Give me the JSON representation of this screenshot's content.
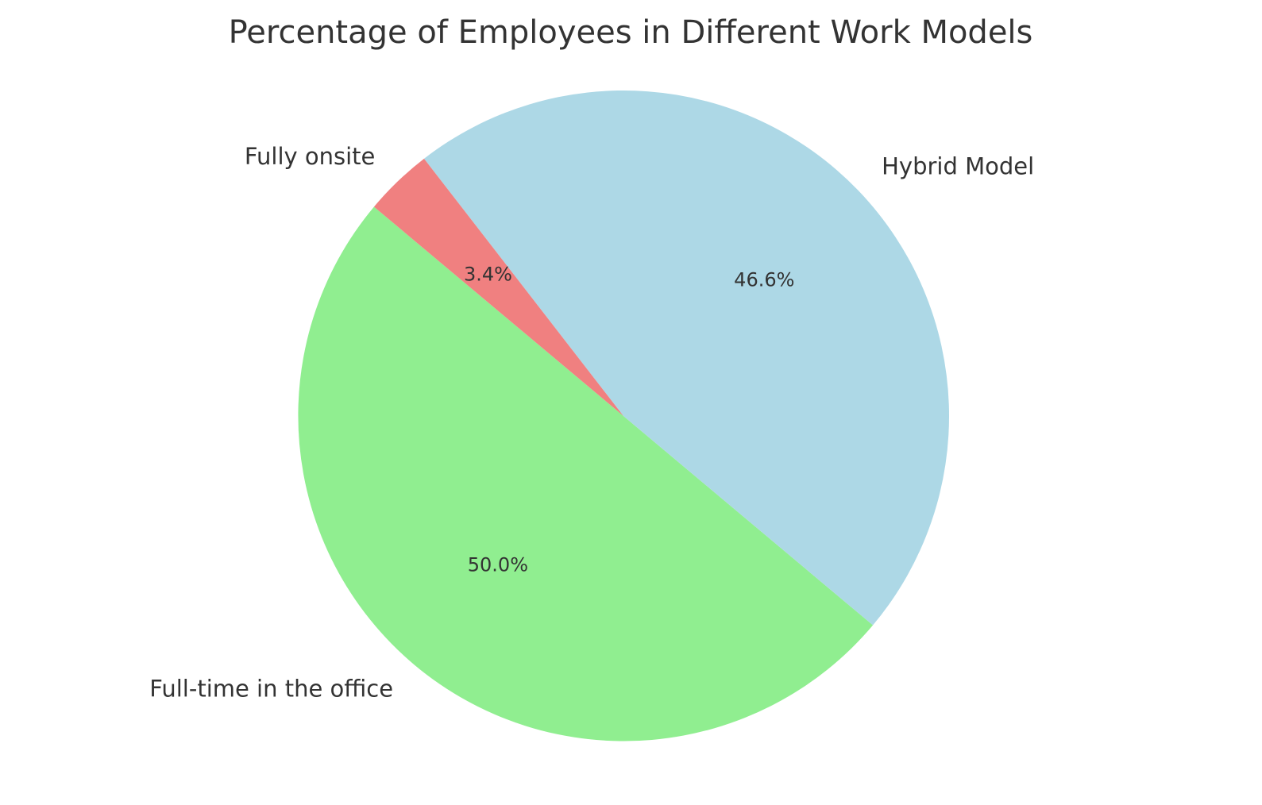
{
  "chart_data": {
    "type": "pie",
    "title": "Percentage of Employees in Different Work Models",
    "categories": [
      "Full-time in the office",
      "Hybrid Model",
      "Fully onsite"
    ],
    "values": [
      50.0,
      46.6,
      3.4
    ],
    "value_labels": [
      "50.0%",
      "46.6%",
      "3.4%"
    ],
    "colors": [
      "#90ee90",
      "#add8e6",
      "#f08080"
    ],
    "start_angle_deg": 140,
    "direction": "counterclockwise",
    "legend": "none"
  }
}
